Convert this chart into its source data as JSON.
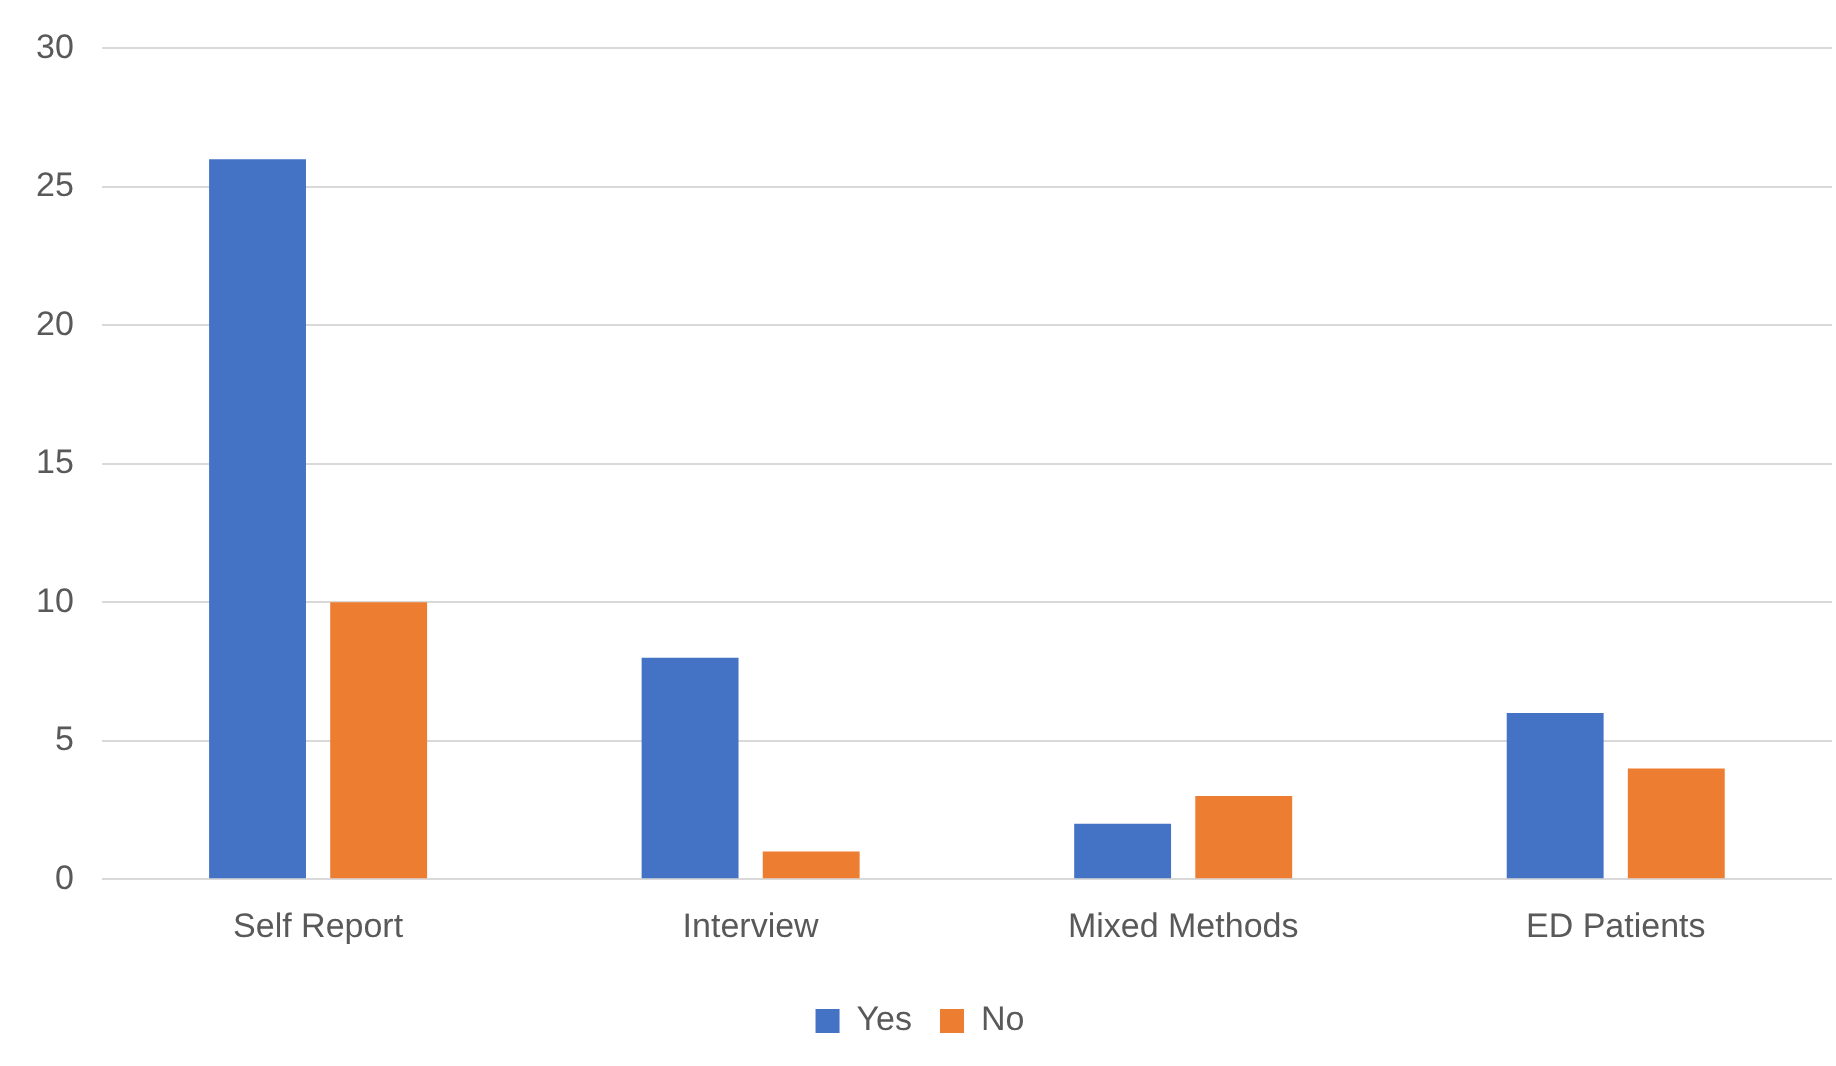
{
  "chart_data": {
    "type": "bar",
    "categories": [
      "Self Report",
      "Interview",
      "Mixed Methods",
      "ED Patients"
    ],
    "series": [
      {
        "name": "Yes",
        "color": "#4472c4",
        "values": [
          26,
          8,
          2,
          6
        ]
      },
      {
        "name": "No",
        "color": "#ed7d31",
        "values": [
          10,
          1,
          3,
          4
        ]
      }
    ],
    "ylim": [
      0,
      30
    ],
    "yticks": [
      0,
      5,
      10,
      15,
      20,
      25,
      30
    ],
    "grid": "y",
    "legend": "bottom"
  }
}
